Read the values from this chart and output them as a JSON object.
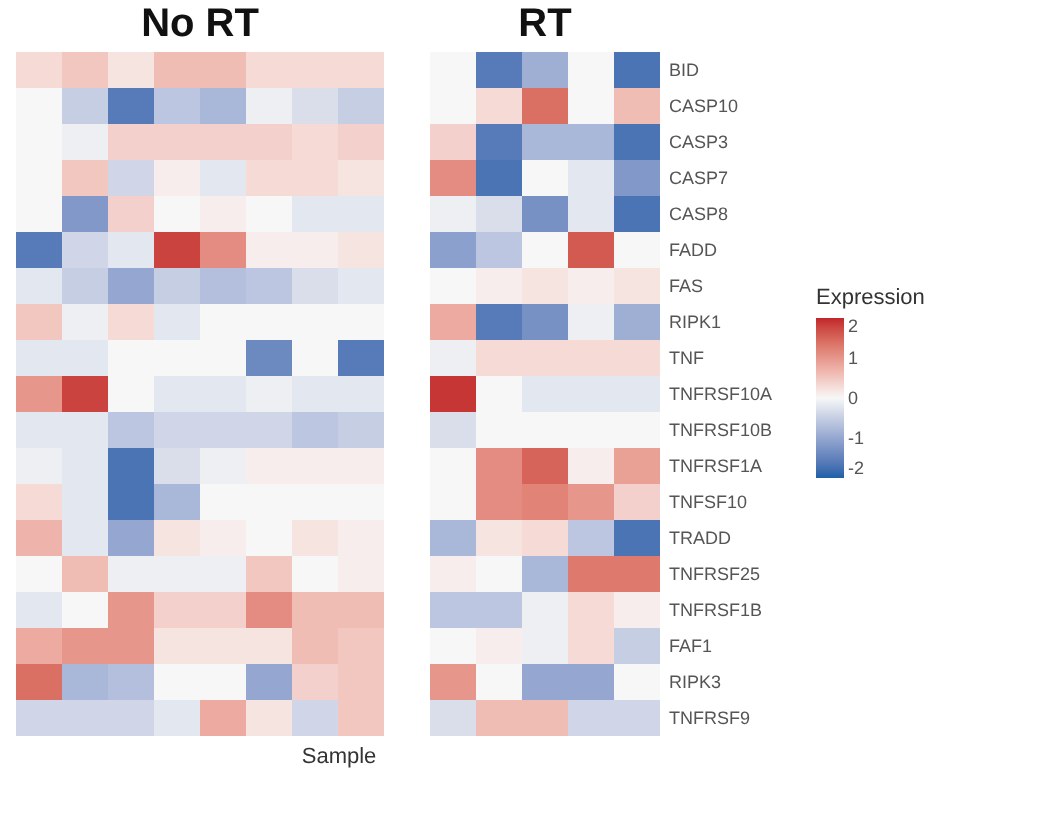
{
  "chart_data": {
    "type": "heatmap",
    "xlabel": "Sample",
    "tick_labels": "y",
    "annotations": [
      "No RT",
      "RT"
    ],
    "categories": [
      null,
      null,
      null,
      null,
      null,
      null,
      null,
      null,
      null,
      null,
      null,
      null,
      null,
      null
    ],
    "y_categories": [
      "BID",
      "CASP10",
      "CASP3",
      "CASP7",
      "CASP8",
      "FADD",
      "FAS",
      "RIPK1",
      "TNF",
      "TNFRSF10A",
      "TNFRSF10B",
      "TNFRSF1A",
      "TNFSF10",
      "TRADD",
      "TNFRSF25",
      "TNFRSF1B",
      "FAF1",
      "RIPK3",
      "TNFRSF9"
    ],
    "cells": [
      [
        0.3,
        0.5,
        0.2,
        0.6,
        0.6,
        0.3,
        0.3,
        0.3,
        null,
        0,
        -1.6,
        -0.9,
        0,
        -1.7
      ],
      [
        0,
        -0.5,
        -1.6,
        -0.6,
        -0.8,
        -0.1,
        -0.3,
        -0.5,
        null,
        0,
        0.3,
        1.4,
        0,
        0.6
      ],
      [
        0,
        -0.1,
        0.4,
        0.4,
        0.4,
        0.4,
        0.3,
        0.4,
        null,
        0.4,
        -1.6,
        -0.8,
        -0.8,
        -1.7
      ],
      [
        0,
        0.5,
        -0.4,
        0.1,
        -0.2,
        0.3,
        0.3,
        0.2,
        null,
        1.1,
        -1.7,
        0,
        -0.2,
        -1.2
      ],
      [
        0,
        -1.2,
        0.4,
        0,
        0.1,
        0,
        -0.2,
        -0.2,
        null,
        -0.1,
        -0.3,
        -1.3,
        -0.2,
        -1.7
      ],
      [
        -1.6,
        -0.4,
        -0.2,
        1.8,
        1.1,
        0.1,
        0.1,
        0.2,
        null,
        -1.1,
        -0.6,
        0,
        1.6,
        0
      ],
      [
        -0.2,
        -0.5,
        -1.0,
        -0.5,
        -0.7,
        -0.6,
        -0.3,
        -0.2,
        null,
        0,
        0.1,
        0.2,
        0.1,
        0.2
      ],
      [
        0.5,
        -0.1,
        0.3,
        -0.2,
        0,
        0,
        0,
        0,
        null,
        0.8,
        -1.6,
        -1.3,
        -0.1,
        -0.9
      ],
      [
        -0.2,
        -0.2,
        0,
        0,
        0,
        -1.4,
        0,
        -1.6,
        null,
        -0.1,
        0.3,
        0.3,
        0.3,
        0.3
      ],
      [
        1.0,
        1.8,
        0,
        -0.2,
        -0.2,
        -0.1,
        -0.2,
        -0.2,
        null,
        1.9,
        0,
        -0.2,
        -0.2,
        -0.2
      ],
      [
        -0.2,
        -0.2,
        -0.6,
        -0.4,
        -0.4,
        -0.4,
        -0.6,
        -0.5,
        null,
        -0.3,
        0,
        0,
        0,
        0
      ],
      [
        -0.1,
        -0.2,
        -1.7,
        -0.3,
        -0.1,
        0.1,
        0.1,
        0.1,
        null,
        0,
        1.1,
        1.5,
        0.1,
        0.9
      ],
      [
        0.3,
        -0.2,
        -1.7,
        -0.8,
        0,
        0,
        0,
        0,
        null,
        0,
        1.1,
        1.2,
        1.0,
        0.4
      ],
      [
        0.7,
        -0.2,
        -1.0,
        0.2,
        0.1,
        0,
        0.2,
        0.1,
        null,
        -0.8,
        0.2,
        0.3,
        -0.6,
        -1.7
      ],
      [
        0,
        0.6,
        -0.1,
        -0.1,
        -0.1,
        0.5,
        0,
        0.1,
        null,
        0.1,
        0,
        -0.8,
        1.3,
        1.3
      ],
      [
        -0.2,
        0,
        1.0,
        0.4,
        0.4,
        1.1,
        0.6,
        0.6,
        null,
        -0.6,
        -0.6,
        -0.1,
        0.3,
        0.1
      ],
      [
        0.8,
        1.0,
        1.0,
        0.2,
        0.2,
        0.2,
        0.6,
        0.5,
        null,
        0,
        0.1,
        -0.1,
        0.3,
        -0.5
      ],
      [
        1.4,
        -0.8,
        -0.7,
        0,
        0,
        -1.0,
        0.4,
        0.5,
        null,
        1.0,
        0,
        -1.0,
        -1.0,
        0
      ],
      [
        -0.4,
        -0.4,
        -0.4,
        -0.2,
        0.8,
        0.2,
        -0.4,
        0.5,
        null,
        -0.3,
        0.6,
        0.6,
        -0.4,
        -0.4
      ]
    ],
    "clabel": "Expression",
    "clim": [
      -2,
      2
    ],
    "cticks": [
      -2,
      -1,
      0,
      1,
      2
    ]
  }
}
